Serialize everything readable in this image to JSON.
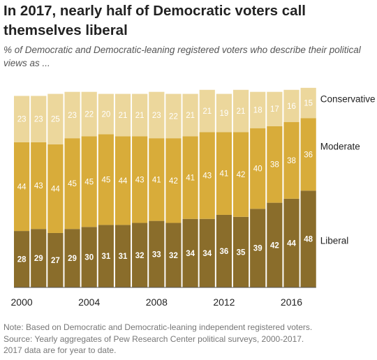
{
  "title": "In 2017, nearly half of Democratic voters call themselves liberal",
  "subtitle": "% of Democratic and Democratic-leaning registered voters who describe their political views as ...",
  "notes": [
    "Note: Based on Democratic and Democratic-leaning independent registered voters.",
    "Source: Yearly aggregates of Pew Research Center political surveys, 2000-2017.",
    "2017 data are for year to date."
  ],
  "colors": {
    "liberal": "#8a6d2b",
    "moderate": "#d8ac3a",
    "conservative": "#ecd79c",
    "label_light": "#ffffff",
    "axis_text": "#222222"
  },
  "chart_data": {
    "type": "bar",
    "stacked": true,
    "x": [
      2000,
      2001,
      2002,
      2003,
      2004,
      2005,
      2006,
      2007,
      2008,
      2009,
      2010,
      2011,
      2012,
      2013,
      2014,
      2015,
      2016,
      2017
    ],
    "x_tick_labels": [
      "2000",
      "2004",
      "2008",
      "2012",
      "2016"
    ],
    "x_tick_values": [
      2000,
      2004,
      2008,
      2012,
      2016
    ],
    "series": [
      {
        "name": "Liberal",
        "key": "liberal",
        "values": [
          28,
          29,
          27,
          29,
          30,
          31,
          31,
          32,
          33,
          32,
          34,
          34,
          36,
          35,
          39,
          42,
          44,
          48
        ]
      },
      {
        "name": "Moderate",
        "key": "moderate",
        "values": [
          44,
          43,
          44,
          45,
          45,
          45,
          44,
          43,
          41,
          42,
          41,
          43,
          41,
          42,
          40,
          38,
          38,
          36
        ]
      },
      {
        "name": "Conservative",
        "key": "conservative",
        "values": [
          23,
          23,
          25,
          23,
          22,
          20,
          21,
          21,
          23,
          22,
          21,
          21,
          19,
          21,
          18,
          17,
          16,
          15
        ]
      }
    ],
    "legend_placement": "right, beside last bar",
    "grid": false
  }
}
